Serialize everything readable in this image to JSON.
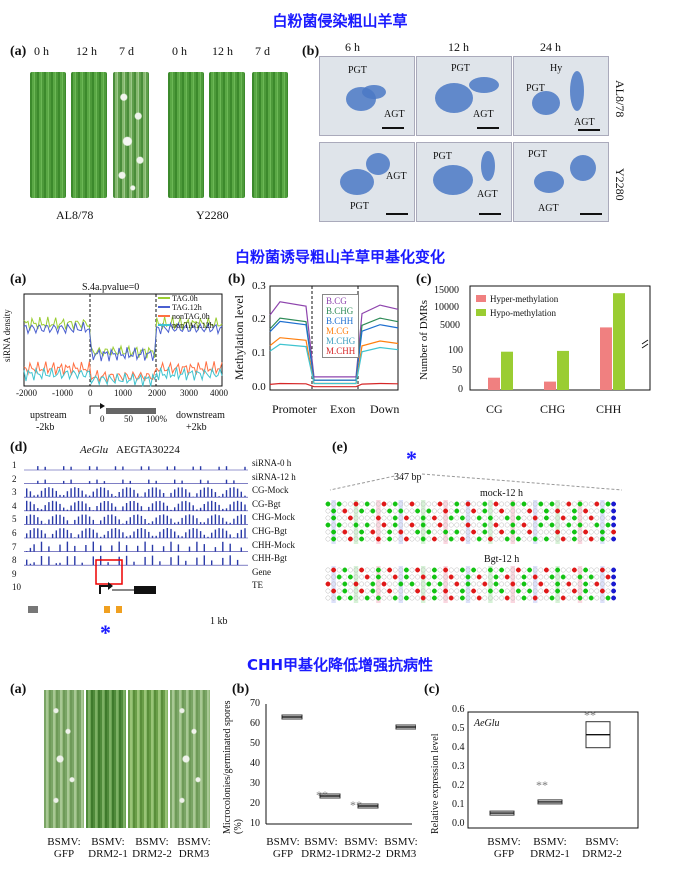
{
  "section1": {
    "title": "白粉菌侵染粗山羊草",
    "panel_a": {
      "label": "(a)",
      "times": [
        "0 h",
        "12 h",
        "7 d",
        "0 h",
        "12 h",
        "7 d"
      ],
      "genotypes": [
        "AL8/78",
        "Y2280"
      ]
    },
    "panel_b": {
      "label": "(b)",
      "times": [
        "6 h",
        "12 h",
        "24 h"
      ],
      "rows": [
        "AL8/78",
        "Y2280"
      ],
      "annotations": {
        "r1c1": [
          "PGT",
          "AGT"
        ],
        "r1c2": [
          "PGT",
          "AGT"
        ],
        "r1c3": [
          "Hy",
          "PGT",
          "AGT"
        ],
        "r2c1": [
          "AGT",
          "PGT"
        ],
        "r2c2": [
          "PGT",
          "AGT"
        ],
        "r2c3": [
          "PGT",
          "AGT"
        ]
      }
    }
  },
  "section2": {
    "title": "白粉菌诱导粗山羊草甲基化变化",
    "panel_a": {
      "label": "(a)",
      "chart_title": "S.4a.pvalue=0",
      "legend": [
        "TAG.0h",
        "TAG.12h",
        "nonTAG.0h",
        "nonTAG.12h"
      ],
      "ylabel": "siRNA density",
      "xticks": [
        "-2000",
        "-1000",
        "0",
        "1000",
        "2000",
        "3000",
        "4000"
      ],
      "xticks2": [
        "0",
        "50",
        "100%"
      ],
      "upstream": "upstream",
      "upstream2": "-2kb",
      "downstream": "downstream",
      "downstream2": "+2kb"
    },
    "panel_b": {
      "label": "(b)",
      "ylabel": "Methylation level",
      "yticks": [
        "0.0",
        "0.1",
        "0.2",
        "0.3"
      ],
      "xlabels": [
        "Promoter",
        "Exon",
        "Down"
      ],
      "legend": [
        "B.CG",
        "B.CHG",
        "B.CHH",
        "M.CG",
        "M.CHG",
        "M.CHH"
      ]
    },
    "panel_c": {
      "label": "(c)",
      "ylabel": "Number of DMRs",
      "yticks_top": [
        "5000",
        "10000",
        "15000"
      ],
      "yticks_bottom": [
        "0",
        "50",
        "100"
      ],
      "legend": [
        "Hyper-methylation",
        "Hypo-methylation"
      ],
      "categories": [
        "CG",
        "CHG",
        "CHH"
      ]
    },
    "panel_d": {
      "label": "(d)",
      "gene_name_italic": "AeGlu",
      "gene_id": "AEGTA30224",
      "tracks": [
        "siRNA-0 h",
        "siRNA-12 h",
        "CG-Mock",
        "CG-Bgt",
        "CHG-Mock",
        "CHG-Bgt",
        "CHH-Mock",
        "CHH-Bgt",
        "Gene",
        "TE"
      ],
      "track_numbers": [
        "1",
        "2",
        "3",
        "4",
        "5",
        "6",
        "7",
        "8",
        "9",
        "10"
      ],
      "scale": "1 kb",
      "star": "*"
    },
    "panel_e": {
      "label": "(e)",
      "star": "*",
      "length": "347 bp",
      "groups": [
        "mock-12 h",
        "Bgt-12 h"
      ]
    }
  },
  "section3": {
    "title": "CHH甲基化降低增强抗病性",
    "panel_a": {
      "label": "(a)",
      "samples": [
        [
          "BSMV:",
          "GFP"
        ],
        [
          "BSMV:",
          "DRM2-1"
        ],
        [
          "BSMV:",
          "DRM2-2"
        ],
        [
          "BSMV:",
          "DRM3"
        ]
      ]
    },
    "panel_b": {
      "label": "(b)",
      "ylabel": "Microcolonies/germinated spores (%)",
      "yticks": [
        "10",
        "20",
        "30",
        "40",
        "50",
        "60",
        "70"
      ],
      "sig": "**",
      "samples": [
        [
          "BSMV:",
          "GFP"
        ],
        [
          "BSMV:",
          "DRM2-1"
        ],
        [
          "BSMV:",
          "DRM2-2"
        ],
        [
          "BSMV:",
          "DRM3"
        ]
      ]
    },
    "panel_c": {
      "label": "(c)",
      "ylabel": "Relative expression level",
      "gene_italic": "AeGlu",
      "yticks": [
        "0.0",
        "0.1",
        "0.2",
        "0.3",
        "0.4",
        "0.5",
        "0.6"
      ],
      "sig": "**",
      "samples": [
        [
          "BSMV:",
          "GFP"
        ],
        [
          "BSMV:",
          "DRM2-1"
        ],
        [
          "BSMV:",
          "DRM2-2"
        ]
      ]
    }
  },
  "chart_data": [
    {
      "type": "line",
      "id": "siRNA-density-profile",
      "title": "S.4a.pvalue=0",
      "ylabel": "siRNA density",
      "xlim": [
        -2000,
        4000
      ],
      "series": [
        {
          "name": "TAG.0h",
          "color": "#9acd32",
          "level": 0.78
        },
        {
          "name": "TAG.12h",
          "color": "#4a5fd0",
          "level": 0.72
        },
        {
          "name": "nonTAG.0h",
          "color": "#ff7043",
          "level": 0.22
        },
        {
          "name": "nonTAG.12h",
          "color": "#40c4d0",
          "level": 0.15
        }
      ]
    },
    {
      "type": "line",
      "id": "methylation-level",
      "ylabel": "Methylation level",
      "ylim": [
        0,
        0.3
      ],
      "regions": [
        "Promoter",
        "Exon",
        "Down"
      ],
      "series": [
        {
          "name": "B.CG",
          "color": "#8e44ad",
          "promoter": 0.27,
          "exon": 0.04,
          "down": 0.26
        },
        {
          "name": "B.CHG",
          "color": "#2e8b57",
          "promoter": 0.22,
          "exon": 0.03,
          "down": 0.22
        },
        {
          "name": "B.CHH",
          "color": "#1e6fd0",
          "promoter": 0.21,
          "exon": 0.03,
          "down": 0.2
        },
        {
          "name": "M.CG",
          "color": "#ff7f0e",
          "promoter": 0.16,
          "exon": 0.02,
          "down": 0.15
        },
        {
          "name": "M.CHG",
          "color": "#40c4d0",
          "promoter": 0.14,
          "exon": 0.02,
          "down": 0.13
        },
        {
          "name": "M.CHH",
          "color": "#d62728",
          "promoter": 0.02,
          "exon": 0.01,
          "down": 0.02
        }
      ]
    },
    {
      "type": "bar",
      "id": "dmr-counts",
      "ylabel": "Number of DMRs",
      "categories": [
        "CG",
        "CHG",
        "CHH"
      ],
      "series": [
        {
          "name": "Hyper-methylation",
          "color": "#f08080",
          "values": [
            32,
            22,
            2800
          ]
        },
        {
          "name": "Hypo-methylation",
          "color": "#9acd32",
          "values": [
            100,
            102,
            13500
          ]
        }
      ]
    },
    {
      "type": "box",
      "id": "microcolonies",
      "ylabel": "Microcolonies/germinated spores (%)",
      "ylim": [
        10,
        70
      ],
      "categories": [
        "BSMV: GFP",
        "BSMV: DRM2-1",
        "BSMV: DRM2-2",
        "BSMV: DRM3"
      ],
      "values": [
        63.5,
        24,
        19,
        58.5
      ]
    },
    {
      "type": "box",
      "id": "aeglu-expression",
      "ylabel": "Relative expression level",
      "ylim": [
        0,
        0.6
      ],
      "categories": [
        "BSMV: GFP",
        "BSMV: DRM2-1",
        "BSMV: DRM2-2"
      ],
      "values": [
        0.08,
        0.14,
        0.5
      ]
    }
  ]
}
